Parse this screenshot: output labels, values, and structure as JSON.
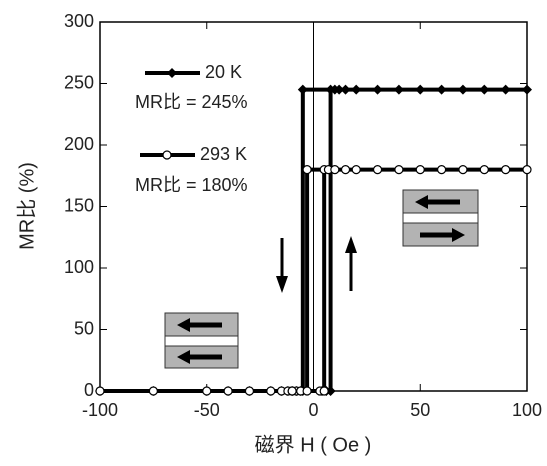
{
  "chart_data": {
    "type": "line",
    "xlabel": "磁界 H ( Oe )",
    "ylabel": "MR比 (%)",
    "xlim": [
      -100,
      100
    ],
    "xticks": [
      -100,
      -50,
      0,
      50,
      100
    ],
    "ylim": [
      0,
      300
    ],
    "yticks": [
      0,
      50,
      100,
      150,
      200,
      250,
      300
    ],
    "annotations": [
      "MR比 = 245%",
      "MR比 = 180%"
    ],
    "series": [
      {
        "name": "20 K",
        "color": "#000000",
        "marker": "diamond",
        "x": [
          -100,
          -75,
          -50,
          -40,
          -30,
          -20,
          -15,
          -12,
          -10,
          -8,
          -6,
          4,
          6,
          8,
          8,
          10,
          12,
          15,
          20,
          30,
          40,
          50,
          60,
          70,
          80,
          90,
          100,
          -5,
          -5,
          -10
        ],
        "values": [
          0,
          0,
          0,
          0,
          0,
          0,
          0,
          0,
          0,
          0,
          0,
          0,
          0,
          0,
          245,
          245,
          245,
          245,
          245,
          245,
          245,
          245,
          245,
          245,
          245,
          245,
          245,
          245,
          0,
          0
        ]
      },
      {
        "name": "293 K",
        "color": "#000000",
        "marker": "circle",
        "x": [
          -100,
          -75,
          -50,
          -40,
          -30,
          -20,
          -15,
          -12,
          -10,
          -8,
          -6,
          3,
          5,
          5,
          7,
          10,
          15,
          20,
          30,
          40,
          50,
          60,
          70,
          80,
          90,
          100,
          -3,
          -3,
          -10
        ],
        "values": [
          0,
          0,
          0,
          0,
          0,
          0,
          0,
          0,
          0,
          0,
          0,
          0,
          0,
          180,
          180,
          180,
          180,
          180,
          180,
          180,
          180,
          180,
          180,
          180,
          180,
          180,
          180,
          0,
          0
        ]
      }
    ]
  }
}
